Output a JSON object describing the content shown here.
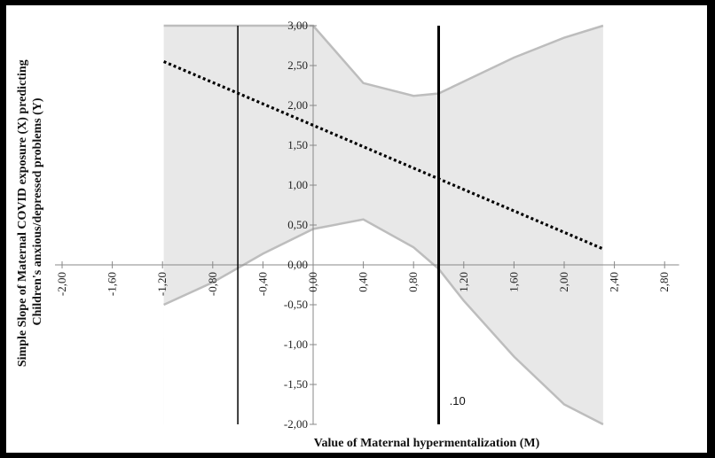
{
  "chart_data": {
    "type": "line",
    "xlabel": "Value of Maternal hypermentalization (M)",
    "ylabel_lines": [
      "Simple Slope of Maternal COVID exposure (X) predicting",
      "Children's anxious/depressed problems (Y)"
    ],
    "xlim": [
      -2.0,
      3.0
    ],
    "ylim": [
      -2.0,
      3.0
    ],
    "x_ticks": [
      "-2,00",
      "-1,60",
      "-1,20",
      "-0,80",
      "-0,40",
      "0,00",
      "0,40",
      "0,80",
      "1,20",
      "1,60",
      "2,00",
      "2,40",
      "2,80"
    ],
    "x_tick_values": [
      -2.0,
      -1.6,
      -1.2,
      -0.8,
      -0.4,
      0.0,
      0.4,
      0.8,
      1.2,
      1.6,
      2.0,
      2.4,
      2.8
    ],
    "y_ticks": [
      "3,00",
      "2,50",
      "2,00",
      "1,50",
      "1,00",
      "0,50",
      "0,00",
      "-0,50",
      "-1,00",
      "-1,50",
      "-2,00"
    ],
    "y_tick_values": [
      3.0,
      2.5,
      2.0,
      1.5,
      1.0,
      0.5,
      0.0,
      -0.5,
      -1.0,
      -1.5,
      -2.0
    ],
    "grid": false,
    "series": [
      {
        "style": "dotted",
        "x": [
          -1.19,
          2.31
        ],
        "y": [
          2.55,
          0.2
        ]
      }
    ],
    "confidence_band": {
      "x": [
        -1.19,
        -0.8,
        -0.4,
        0.0,
        0.4,
        0.8,
        1.0,
        1.2,
        1.6,
        2.0,
        2.31
      ],
      "upper": [
        3.0,
        3.0,
        3.0,
        3.0,
        2.28,
        2.12,
        2.15,
        2.3,
        2.6,
        2.85,
        3.0
      ],
      "lower": [
        -0.5,
        -0.22,
        0.14,
        0.45,
        0.57,
        0.22,
        -0.05,
        -0.45,
        -1.15,
        -1.75,
        -2.0
      ],
      "x_range": [
        -1.19,
        2.31
      ],
      "color": "#e8e8e8",
      "edge_color": "#bdbdbd"
    },
    "vertical_lines": [
      {
        "x": -0.6,
        "style": "thin"
      },
      {
        "x": 1.0,
        "style": "thick"
      }
    ],
    "annotations": [
      {
        "text": ".10",
        "x": 1.1,
        "y": -1.7
      }
    ]
  }
}
